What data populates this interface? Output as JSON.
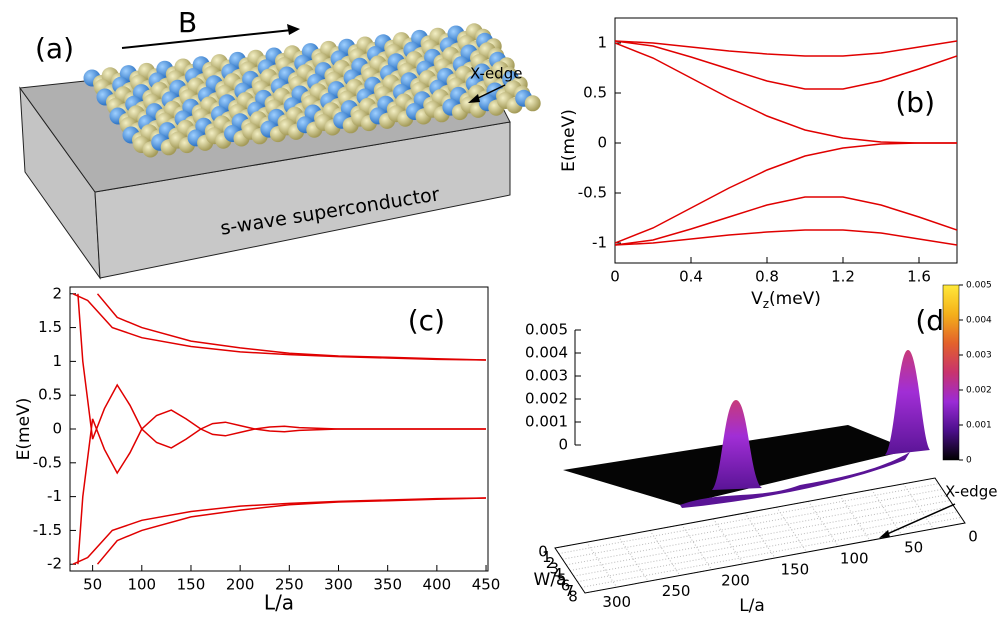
{
  "diagram": {
    "label": "(a)",
    "field": "B",
    "edge": "X-edge",
    "substrate": "s-wave superconductor"
  },
  "chart_data": [
    {
      "type": "line",
      "panel_label": "(b)",
      "xlabel": [
        "V",
        "z",
        "(meV)"
      ],
      "ylabel": "E(meV)",
      "x": [
        0,
        0.2,
        0.4,
        0.6,
        0.8,
        1.0,
        1.2,
        1.4,
        1.6,
        1.8
      ],
      "series": [
        {
          "color": "#e00000",
          "values": [
            1.02,
            1.0,
            0.96,
            0.92,
            0.89,
            0.87,
            0.87,
            0.9,
            0.96,
            1.02
          ]
        },
        {
          "color": "#e00000",
          "values": [
            1.02,
            0.97,
            0.86,
            0.74,
            0.62,
            0.54,
            0.54,
            0.62,
            0.74,
            0.87
          ]
        },
        {
          "color": "#e00000",
          "values": [
            1.0,
            0.85,
            0.65,
            0.45,
            0.27,
            0.13,
            0.05,
            0.01,
            0,
            0
          ]
        },
        {
          "color": "#e00000",
          "values": [
            -1.0,
            -0.85,
            -0.65,
            -0.45,
            -0.27,
            -0.13,
            -0.05,
            -0.01,
            0,
            0
          ]
        },
        {
          "color": "#e00000",
          "values": [
            -1.02,
            -0.97,
            -0.86,
            -0.74,
            -0.62,
            -0.54,
            -0.54,
            -0.62,
            -0.74,
            -0.87
          ]
        },
        {
          "color": "#e00000",
          "values": [
            -1.02,
            -1.0,
            -0.96,
            -0.92,
            -0.89,
            -0.87,
            -0.87,
            -0.9,
            -0.96,
            -1.02
          ]
        }
      ],
      "xlim": [
        0,
        1.8
      ],
      "ylim": [
        -1.2,
        1.25
      ],
      "xticks": [
        0,
        0.4,
        0.8,
        1.2,
        1.6
      ],
      "yticks": [
        -1,
        -0.5,
        0,
        0.5,
        1
      ]
    },
    {
      "type": "line",
      "panel_label": "(c)",
      "xlabel": "L/a",
      "ylabel": "E(meV)",
      "series": [
        {
          "color": "#e00000",
          "x": [
            35,
            40,
            50,
            62,
            75,
            88,
            100,
            115,
            130,
            145,
            160,
            172,
            185,
            200,
            215,
            230,
            245,
            260,
            300,
            350,
            400,
            450
          ],
          "values": [
            2.0,
            1.0,
            -0.15,
            0.3,
            0.65,
            0.35,
            0,
            -0.2,
            -0.28,
            -0.15,
            0,
            0.08,
            0.1,
            0.05,
            0,
            -0.03,
            -0.04,
            -0.02,
            0,
            0,
            0,
            0
          ]
        },
        {
          "color": "#e00000",
          "x": [
            35,
            40,
            50,
            62,
            75,
            88,
            100,
            115,
            130,
            145,
            160,
            172,
            185,
            200,
            215,
            230,
            245,
            260,
            300,
            350,
            400,
            450
          ],
          "values": [
            -2.0,
            -1.0,
            0.15,
            -0.3,
            -0.65,
            -0.35,
            0,
            0.2,
            0.28,
            0.15,
            0,
            -0.08,
            -0.1,
            -0.05,
            0,
            0.03,
            0.04,
            0.02,
            0,
            0,
            0,
            0
          ]
        },
        {
          "color": "#e00000",
          "x": [
            55,
            75,
            100,
            150,
            200,
            250,
            300,
            350,
            400,
            450
          ],
          "values": [
            2.0,
            1.65,
            1.5,
            1.3,
            1.2,
            1.12,
            1.08,
            1.06,
            1.04,
            1.02
          ]
        },
        {
          "color": "#e00000",
          "x": [
            55,
            75,
            100,
            150,
            200,
            250,
            300,
            350,
            400,
            450
          ],
          "values": [
            -2.0,
            -1.65,
            -1.5,
            -1.3,
            -1.2,
            -1.12,
            -1.08,
            -1.06,
            -1.04,
            -1.02
          ]
        },
        {
          "color": "#e00000",
          "x": [
            30,
            45,
            70,
            100,
            150,
            200,
            250,
            300,
            350,
            400,
            450
          ],
          "values": [
            2.0,
            1.9,
            1.5,
            1.35,
            1.22,
            1.14,
            1.1,
            1.07,
            1.05,
            1.03,
            1.02
          ]
        },
        {
          "color": "#e00000",
          "x": [
            30,
            45,
            70,
            100,
            150,
            200,
            250,
            300,
            350,
            400,
            450
          ],
          "values": [
            -2.0,
            -1.9,
            -1.5,
            -1.35,
            -1.22,
            -1.14,
            -1.1,
            -1.07,
            -1.05,
            -1.03,
            -1.02
          ]
        }
      ],
      "xlim": [
        27,
        452
      ],
      "ylim": [
        -2.1,
        2.1
      ],
      "xticks": [
        50,
        100,
        150,
        200,
        250,
        300,
        350,
        400,
        450
      ],
      "yticks": [
        -2,
        -1.5,
        -1,
        -0.5,
        0,
        0.5,
        1,
        1.5,
        2
      ]
    },
    {
      "type": "surface3d",
      "panel_label": "(d)",
      "xlabel": "L/a",
      "ylabel": "W/a",
      "annotation": "X-edge",
      "zticks": [
        0,
        0.001,
        0.002,
        0.003,
        0.004,
        0.005
      ],
      "zlim": [
        0,
        0.005
      ],
      "xticks": [
        300,
        250,
        200,
        150,
        100,
        50,
        0
      ],
      "yticks": [
        0,
        1,
        2,
        3,
        4,
        5,
        6,
        7,
        8
      ],
      "colorbar_ticks": [
        0,
        0.001,
        0.002,
        0.003,
        0.004,
        0.005
      ],
      "colormap": [
        "#000000",
        "#4b0f8a",
        "#9b2bd6",
        "#c8336e",
        "#e3612b",
        "#f4b01a",
        "#ffe93a"
      ]
    }
  ]
}
